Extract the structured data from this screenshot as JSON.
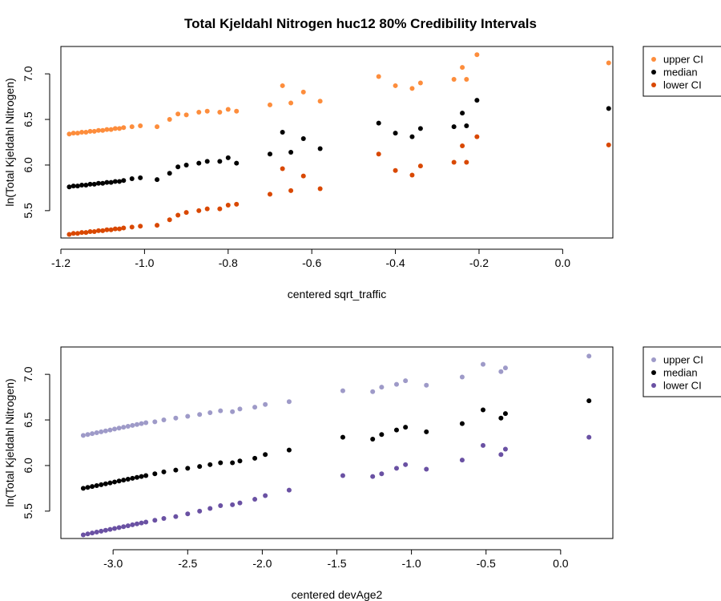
{
  "title": "Total Kjeldahl Nitrogen huc12 80% Credibility Intervals",
  "chart_data": [
    {
      "type": "scatter",
      "xlabel": "centered sqrt_traffic",
      "ylabel": "ln(Total Kjeldahl Nitrogen)",
      "xlim": [
        -1.2,
        0.12
      ],
      "ylim": [
        5.2,
        7.3
      ],
      "xticks": [
        -1.2,
        -1.0,
        -0.8,
        -0.6,
        -0.4,
        -0.2,
        0.0
      ],
      "xtick_labels": [
        "-1.2",
        "-1.0",
        "-0.8",
        "-0.6",
        "-0.4",
        "-0.2",
        "0.0"
      ],
      "yticks": [
        5.5,
        6.0,
        6.5,
        7.0
      ],
      "ytick_labels": [
        "5.5",
        "6.0",
        "6.5",
        "7.0"
      ],
      "legend_position": "top-right, outside plot",
      "x": [
        -1.18,
        -1.17,
        -1.16,
        -1.15,
        -1.14,
        -1.13,
        -1.12,
        -1.11,
        -1.1,
        -1.09,
        -1.08,
        -1.07,
        -1.06,
        -1.05,
        -1.03,
        -1.01,
        -0.97,
        -0.94,
        -0.92,
        -0.9,
        -0.87,
        -0.85,
        -0.82,
        -0.8,
        -0.78,
        -0.7,
        -0.67,
        -0.65,
        -0.62,
        -0.58,
        -0.44,
        -0.4,
        -0.36,
        -0.34,
        -0.26,
        -0.24,
        -0.23,
        -0.205,
        0.11
      ],
      "series": [
        {
          "name": "upper CI",
          "color": "#FD8D3C",
          "values": [
            6.34,
            6.35,
            6.35,
            6.36,
            6.36,
            6.37,
            6.37,
            6.38,
            6.38,
            6.39,
            6.39,
            6.4,
            6.4,
            6.41,
            6.42,
            6.43,
            6.42,
            6.5,
            6.56,
            6.55,
            6.58,
            6.59,
            6.58,
            6.61,
            6.59,
            6.66,
            6.87,
            6.68,
            6.8,
            6.7,
            6.97,
            6.87,
            6.84,
            6.9,
            6.94,
            7.07,
            6.94,
            7.21,
            7.12
          ]
        },
        {
          "name": "median",
          "color": "#000000",
          "values": [
            5.76,
            5.77,
            5.77,
            5.78,
            5.78,
            5.79,
            5.79,
            5.8,
            5.8,
            5.81,
            5.81,
            5.82,
            5.82,
            5.83,
            5.85,
            5.86,
            5.84,
            5.91,
            5.98,
            6.0,
            6.02,
            6.04,
            6.04,
            6.08,
            6.02,
            6.12,
            6.36,
            6.14,
            6.29,
            6.18,
            6.46,
            6.35,
            6.31,
            6.4,
            6.42,
            6.57,
            6.43,
            6.71,
            6.62
          ]
        },
        {
          "name": "lower CI",
          "color": "#D94801",
          "values": [
            5.24,
            5.25,
            5.25,
            5.26,
            5.26,
            5.27,
            5.27,
            5.28,
            5.28,
            5.29,
            5.29,
            5.3,
            5.3,
            5.31,
            5.32,
            5.33,
            5.34,
            5.4,
            5.45,
            5.48,
            5.5,
            5.52,
            5.52,
            5.56,
            5.57,
            5.68,
            5.96,
            5.72,
            5.88,
            5.74,
            6.12,
            5.94,
            5.89,
            5.99,
            6.03,
            6.21,
            6.03,
            6.31,
            6.22
          ]
        }
      ]
    },
    {
      "type": "scatter",
      "xlabel": "centered devAge2",
      "ylabel": "ln(Total Kjeldahl Nitrogen)",
      "xlim": [
        -3.35,
        0.35
      ],
      "ylim": [
        5.2,
        7.3
      ],
      "xticks": [
        -3.0,
        -2.5,
        -2.0,
        -1.5,
        -1.0,
        -0.5,
        0.0
      ],
      "xtick_labels": [
        "-3.0",
        "-2.5",
        "-2.0",
        "-1.5",
        "-1.0",
        "-0.5",
        "0.0"
      ],
      "yticks": [
        5.5,
        6.0,
        6.5,
        7.0
      ],
      "ytick_labels": [
        "5.5",
        "6.0",
        "6.5",
        "7.0"
      ],
      "legend_position": "top-right, outside plot",
      "x": [
        -3.2,
        -3.17,
        -3.14,
        -3.11,
        -3.08,
        -3.05,
        -3.02,
        -2.99,
        -2.96,
        -2.93,
        -2.9,
        -2.87,
        -2.84,
        -2.81,
        -2.78,
        -2.72,
        -2.66,
        -2.58,
        -2.5,
        -2.42,
        -2.35,
        -2.28,
        -2.2,
        -2.15,
        -2.05,
        -1.98,
        -1.82,
        -1.46,
        -1.26,
        -1.2,
        -1.1,
        -1.04,
        -0.9,
        -0.66,
        -0.52,
        -0.4,
        -0.37,
        0.19
      ],
      "series": [
        {
          "name": "upper CI",
          "color": "#9E9AC8",
          "values": [
            6.33,
            6.34,
            6.35,
            6.36,
            6.37,
            6.38,
            6.39,
            6.4,
            6.41,
            6.42,
            6.43,
            6.44,
            6.45,
            6.46,
            6.47,
            6.48,
            6.5,
            6.52,
            6.54,
            6.56,
            6.58,
            6.6,
            6.59,
            6.62,
            6.64,
            6.67,
            6.7,
            6.82,
            6.81,
            6.86,
            6.89,
            6.93,
            6.88,
            6.97,
            7.11,
            7.03,
            7.07,
            7.2
          ]
        },
        {
          "name": "median",
          "color": "#000000",
          "values": [
            5.75,
            5.76,
            5.77,
            5.78,
            5.79,
            5.8,
            5.81,
            5.82,
            5.83,
            5.84,
            5.85,
            5.86,
            5.87,
            5.88,
            5.89,
            5.91,
            5.93,
            5.95,
            5.97,
            5.99,
            6.01,
            6.03,
            6.03,
            6.05,
            6.08,
            6.12,
            6.17,
            6.31,
            6.29,
            6.34,
            6.39,
            6.42,
            6.37,
            6.46,
            6.61,
            6.52,
            6.57,
            6.71
          ]
        },
        {
          "name": "lower CI",
          "color": "#6A51A3",
          "values": [
            5.24,
            5.25,
            5.26,
            5.27,
            5.28,
            5.29,
            5.3,
            5.31,
            5.32,
            5.33,
            5.34,
            5.35,
            5.36,
            5.37,
            5.38,
            5.4,
            5.42,
            5.44,
            5.47,
            5.5,
            5.53,
            5.56,
            5.57,
            5.59,
            5.63,
            5.67,
            5.73,
            5.89,
            5.88,
            5.91,
            5.97,
            6.01,
            5.96,
            6.06,
            6.22,
            6.12,
            6.18,
            6.31
          ]
        }
      ]
    }
  ]
}
